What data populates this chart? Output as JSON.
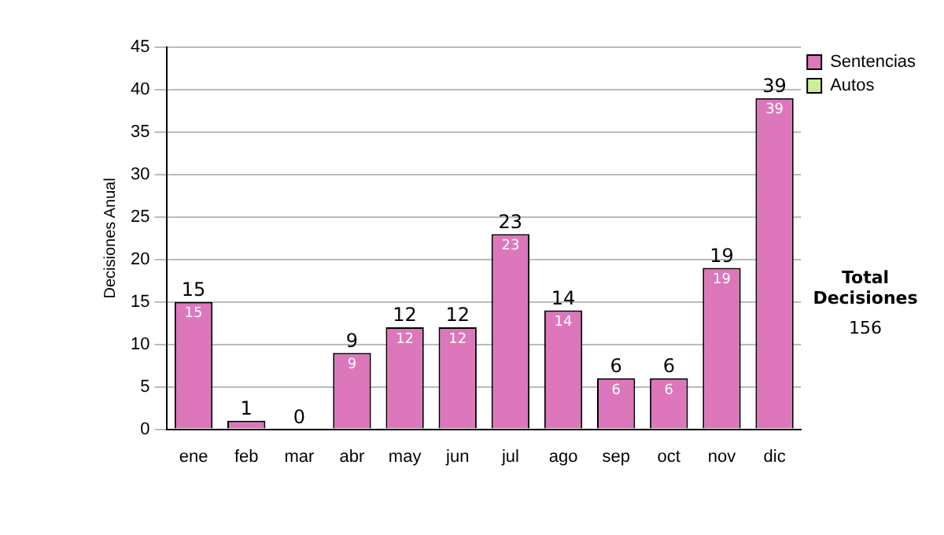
{
  "chart_data": {
    "type": "bar",
    "ylabel": "Decisiones Anual",
    "categories": [
      "ene",
      "feb",
      "mar",
      "abr",
      "may",
      "jun",
      "jul",
      "ago",
      "sep",
      "oct",
      "nov",
      "dic"
    ],
    "series": [
      {
        "name": "Sentencias",
        "color": "#dd77bb",
        "values": [
          15,
          1,
          0,
          9,
          12,
          12,
          23,
          14,
          6,
          6,
          19,
          39
        ],
        "value_labels": [
          "15",
          null,
          null,
          "9",
          "12",
          "12",
          "23",
          "14",
          "6",
          "6",
          "19",
          "39"
        ]
      },
      {
        "name": "Autos",
        "color": "#ccee99",
        "values": [
          0,
          0,
          0,
          0,
          0,
          0,
          0,
          0,
          0,
          0,
          0,
          0
        ]
      }
    ],
    "stacked": true,
    "totals": [
      "15",
      "1",
      "0",
      "9",
      "12",
      "12",
      "23",
      "14",
      "6",
      "6",
      "19",
      "39"
    ],
    "ylim": [
      0,
      45
    ],
    "yticks": [
      0,
      5,
      10,
      15,
      20,
      25,
      30,
      35,
      40,
      45
    ],
    "grid": "y",
    "legend": "right",
    "annotations": [
      "Total Decisiones",
      "156"
    ]
  }
}
